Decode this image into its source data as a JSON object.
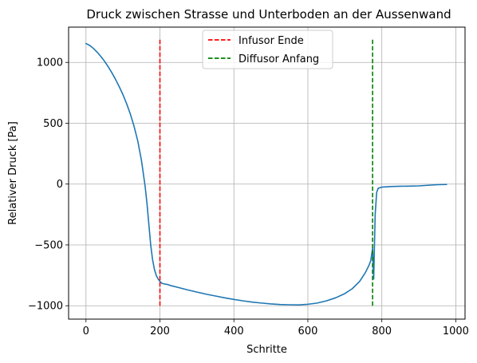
{
  "chart_data": {
    "type": "line",
    "title": "Druck zwischen Strasse und Unterboden an der Aussenwand",
    "xlabel": "Schritte",
    "ylabel": "Relativer Druck [Pa]",
    "xlim": [
      -47,
      1025
    ],
    "ylim": [
      -1110,
      1290
    ],
    "xticks": [
      0,
      200,
      400,
      600,
      800,
      1000
    ],
    "yticks": [
      -1000,
      -500,
      0,
      500,
      1000
    ],
    "xtick_labels": [
      "0",
      "200",
      "400",
      "600",
      "800",
      "1000"
    ],
    "ytick_labels": [
      "−1000",
      "−500",
      "0",
      "500",
      "1000"
    ],
    "grid": true,
    "legend_position": "top-center",
    "series": [
      {
        "color": "#1f77b4",
        "style": "solid",
        "x": [
          0,
          10,
          20,
          30,
          40,
          50,
          60,
          70,
          80,
          90,
          100,
          110,
          120,
          130,
          140,
          150,
          160,
          165,
          170,
          175,
          180,
          185,
          190,
          195,
          200,
          205,
          210,
          220,
          230,
          250,
          275,
          300,
          325,
          350,
          375,
          400,
          425,
          450,
          475,
          500,
          525,
          550,
          575,
          600,
          625,
          650,
          675,
          700,
          720,
          740,
          755,
          765,
          770,
          775,
          778,
          782,
          786,
          790,
          800,
          825,
          850,
          875,
          900,
          925,
          950,
          975
        ],
        "y": [
          1155,
          1140,
          1115,
          1085,
          1050,
          1010,
          965,
          915,
          860,
          800,
          735,
          660,
          575,
          475,
          355,
          195,
          -20,
          -160,
          -330,
          -500,
          -620,
          -700,
          -750,
          -780,
          -800,
          -815,
          -820,
          -825,
          -835,
          -850,
          -870,
          -888,
          -905,
          -920,
          -935,
          -948,
          -960,
          -970,
          -978,
          -985,
          -990,
          -992,
          -993,
          -988,
          -978,
          -960,
          -935,
          -900,
          -860,
          -800,
          -730,
          -670,
          -630,
          -530,
          -780,
          -250,
          -70,
          -35,
          -25,
          -20,
          -18,
          -17,
          -15,
          -10,
          -5,
          -3
        ]
      },
      {
        "name": "Infusor Ende",
        "color": "#ff0000",
        "style": "dashed",
        "x": [
          200,
          200
        ],
        "y": [
          -1000,
          1200
        ]
      },
      {
        "name": "Diffusor Anfang",
        "color": "#008000",
        "style": "dashed",
        "x": [
          775,
          775
        ],
        "y": [
          -1000,
          1200
        ]
      }
    ]
  }
}
